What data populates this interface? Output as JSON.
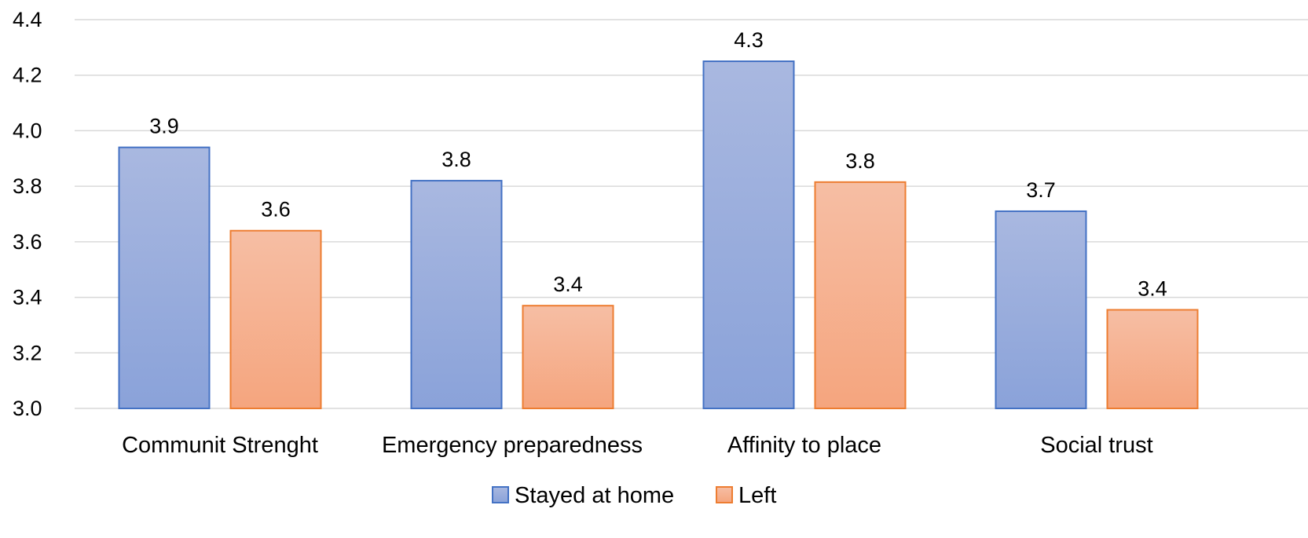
{
  "chart_data": {
    "type": "bar",
    "categories": [
      "Communit Strenght",
      "Emergency preparedness",
      "Affinity to place",
      "Social trust"
    ],
    "series": [
      {
        "name": "Stayed at home",
        "values": [
          3.94,
          3.82,
          4.25,
          3.71
        ],
        "labels": [
          "3.9",
          "3.8",
          "4.3",
          "3.7"
        ],
        "color_top": "#a9b8e0",
        "color_bottom": "#8aa2d9",
        "stroke": "#4472c4"
      },
      {
        "name": "Left",
        "values": [
          3.64,
          3.37,
          3.815,
          3.355
        ],
        "labels": [
          "3.6",
          "3.4",
          "3.8",
          "3.4"
        ],
        "color_top": "#f6bea4",
        "color_bottom": "#f5a57e",
        "stroke": "#ed7d31"
      }
    ],
    "yticks": [
      "3.0",
      "3.2",
      "3.4",
      "3.6",
      "3.8",
      "4.0",
      "4.2",
      "4.4"
    ],
    "ylim": [
      3.0,
      4.4
    ],
    "grid": true,
    "legend_position": "bottom",
    "gridline_color": "#d9d9d9"
  }
}
